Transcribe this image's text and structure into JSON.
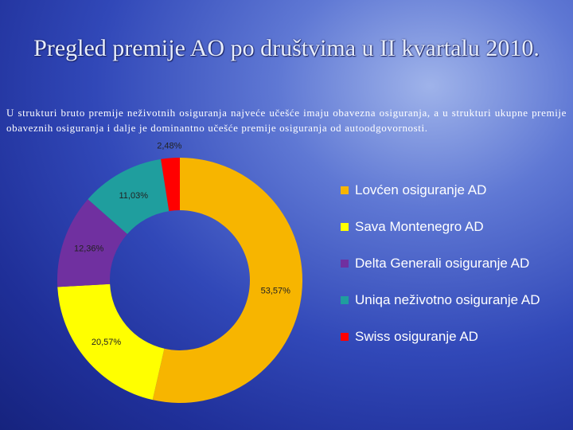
{
  "title": "Pregled premije AO po društvima u II kvartalu 2010.",
  "intro": "U strukturi bruto premije neživotnih osiguranja najveće učešće imaju obavezna osiguranja, a u strukturi ukupne premije obaveznih osiguranja i dalje je dominantno učešće premije osiguranja od autoodgovornosti.",
  "chart_data": {
    "type": "donut",
    "categories": [
      "Lovćen osiguranje AD",
      "Sava Montenegro AD",
      "Delta Generali osiguranje AD",
      "Uniqa neživotno osiguranje AD",
      "Swiss osiguranje AD"
    ],
    "values": [
      53.57,
      20.57,
      12.36,
      11.03,
      2.48
    ],
    "value_labels": [
      "53,57%",
      "20,57%",
      "12,36%",
      "11,03%",
      "2,48%"
    ],
    "colors": [
      "#f7b500",
      "#ffff00",
      "#7030a0",
      "#1f9e9e",
      "#ff0000"
    ],
    "legend": "right"
  }
}
